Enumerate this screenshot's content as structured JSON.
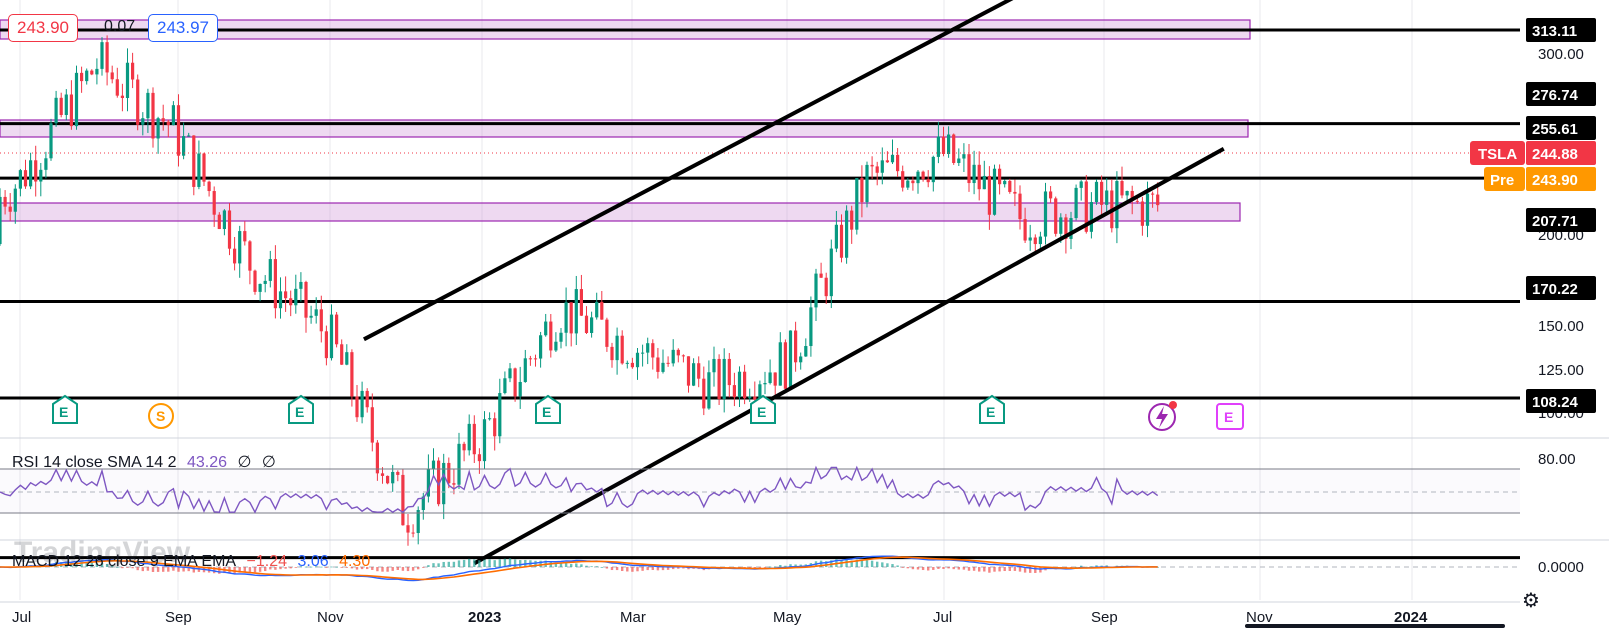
{
  "header": {
    "price_box_left": "243.90",
    "spread": "0.07",
    "price_box_right": "243.97"
  },
  "price_scale": {
    "ticks": [
      "300.00",
      "200.00",
      "150.00",
      "125.00",
      "100.00"
    ],
    "levels": [
      "313.11",
      "276.74",
      "255.61",
      "207.71",
      "170.22",
      "108.24"
    ],
    "symbol": "TSLA",
    "last_price": "244.88",
    "pre_label": "Pre",
    "pre_price": "243.90",
    "colors": {
      "symbol_bg": "#f23645",
      "pre_bg": "#ff9800",
      "level_bg": "#000000"
    }
  },
  "time_axis": {
    "labels": [
      "Jul",
      "Sep",
      "Nov",
      "2023",
      "Mar",
      "May",
      "Jul",
      "Sep",
      "Nov",
      "2024"
    ]
  },
  "events": {
    "earnings": "E",
    "split": "S"
  },
  "rsi": {
    "label": "RSI 14 close SMA 14 2",
    "value": "43.26",
    "v2": "∅",
    "v3": "∅",
    "tick": "80.00",
    "color": "#7e57c2"
  },
  "macd": {
    "label": "MACD 12 26 close 9 EMA EMA",
    "hist": "−1.24",
    "macd": "3.06",
    "signal": "4.30",
    "tick": "0.0000",
    "colors": {
      "macd": "#2962ff",
      "signal": "#ff6d00",
      "hist_pos": "#26a69a",
      "hist_neg": "#ef5350"
    }
  },
  "watermark": "TradingView",
  "chart_data": {
    "type": "line",
    "title": "",
    "ylabel": "",
    "xlabel": "",
    "ylim": [
      95,
      330
    ],
    "symbol": "TSLA",
    "x": [
      "2022-06",
      "2022-07",
      "2022-08",
      "2022-09",
      "2022-10",
      "2022-11",
      "2022-12",
      "2023-01",
      "2023-02",
      "2023-03",
      "2023-04",
      "2023-05",
      "2023-06",
      "2023-07",
      "2023-08",
      "2023-09"
    ],
    "series": [
      {
        "name": "TSLA",
        "values": [
          230,
          255,
          300,
          275,
          222,
          195,
          125,
          155,
          205,
          190,
          175,
          185,
          255,
          265,
          240,
          245
        ]
      }
    ],
    "levels": [
      313.11,
      276.74,
      255.61,
      207.71,
      170.22,
      108.24
    ],
    "zones": [
      [
        310,
        318
      ],
      [
        256,
        263
      ],
      [
        205,
        212
      ]
    ],
    "channel": {
      "upper": [
        [
          "2022-11-15",
          193
        ],
        [
          "2023-09-05",
          345
        ]
      ],
      "lower": [
        [
          "2022-12-28",
          106
        ],
        [
          "2023-10-20",
          267
        ]
      ]
    },
    "last_price": 244.88,
    "pre_price": 243.9
  }
}
